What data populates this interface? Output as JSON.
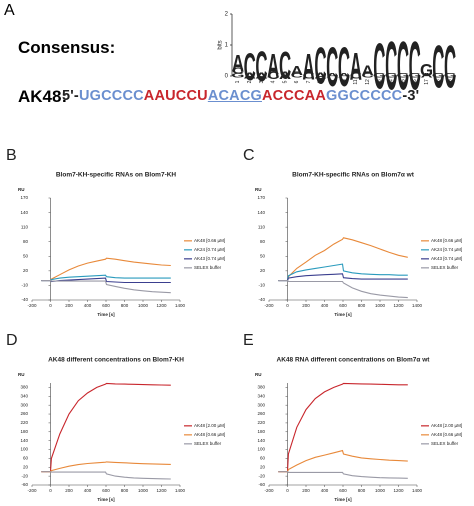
{
  "panel_a": {
    "panel": "A",
    "consensus_label": "Consensus:",
    "seq_label": "AK48:",
    "sequence": [
      {
        "text": "5'-",
        "color": "#222222"
      },
      {
        "text": "UGCCCC",
        "color": "#6b8fcf"
      },
      {
        "text": "AAUCCU",
        "color": "#c8262c"
      },
      {
        "text": "ACACG",
        "color": "#6b8fcf",
        "underline": true
      },
      {
        "text": "ACCCAA",
        "color": "#c8262c"
      },
      {
        "text": "GGCCCCC",
        "color": "#6b8fcf"
      },
      {
        "text": "-3'",
        "color": "#222222"
      }
    ],
    "logo": {
      "ylabel": "bits",
      "ylim": [
        0,
        2
      ],
      "yticks": [
        0,
        1,
        2
      ],
      "positions": [
        1,
        2,
        3,
        4,
        5,
        6,
        7,
        8,
        9,
        10,
        11,
        12,
        13,
        14,
        15,
        16,
        17,
        18,
        19
      ],
      "letter_colors": {
        "A": "#c8262c",
        "C": "#2f55b5",
        "G": "#e8a317",
        "U": "#2e9e3e"
      },
      "columns": [
        [
          [
            "G",
            0.15
          ],
          [
            "C",
            0.2
          ],
          [
            "A",
            0.55
          ]
        ],
        [
          [
            "A",
            0.2
          ],
          [
            "C",
            0.9
          ]
        ],
        [
          [
            "A",
            0.2
          ],
          [
            "C",
            1.0
          ]
        ],
        [
          [
            "C",
            0.25
          ],
          [
            "A",
            0.8
          ]
        ],
        [
          [
            "A",
            0.25
          ],
          [
            "C",
            0.9
          ]
        ],
        [
          [
            "C",
            0.15
          ],
          [
            "A",
            0.3
          ]
        ],
        [
          [
            "C",
            0.2
          ],
          [
            "A",
            0.85
          ]
        ],
        [
          [
            "A",
            0.2
          ],
          [
            "C",
            1.2
          ]
        ],
        [
          [
            "A",
            0.15
          ],
          [
            "C",
            1.3
          ]
        ],
        [
          [
            "A",
            0.15
          ],
          [
            "C",
            1.3
          ]
        ],
        [
          [
            "C",
            0.2
          ],
          [
            "A",
            0.9
          ]
        ],
        [
          [
            "C",
            0.15
          ],
          [
            "A",
            0.35
          ]
        ],
        [
          [
            "G",
            0.15
          ],
          [
            "C",
            1.5
          ]
        ],
        [
          [
            "G",
            0.15
          ],
          [
            "C",
            1.6
          ]
        ],
        [
          [
            "G",
            0.15
          ],
          [
            "C",
            1.6
          ]
        ],
        [
          [
            "G",
            0.15
          ],
          [
            "C",
            1.6
          ]
        ],
        [
          [
            "A",
            0.15
          ],
          [
            "G",
            0.4
          ]
        ],
        [
          [
            "G",
            0.15
          ],
          [
            "C",
            1.4
          ]
        ],
        [
          [
            "G",
            0.15
          ],
          [
            "C",
            1.4
          ]
        ]
      ]
    }
  },
  "chart_data": [
    {
      "type": "line",
      "panel": "B",
      "title": "Blom7-KH-specific RNAs on Blom7-KH",
      "xlabel": "Time [s]",
      "ylabel": "RU",
      "legend": "right",
      "xlim": [
        -200,
        1400
      ],
      "xticks": [
        -200,
        0,
        200,
        400,
        600,
        800,
        1000,
        1200,
        1400
      ],
      "ylim": [
        -40,
        170
      ],
      "yticks": [
        -40,
        -10,
        20,
        50,
        80,
        110,
        140,
        170
      ],
      "x": [
        -100,
        0,
        10,
        100,
        200,
        300,
        400,
        500,
        595,
        605,
        700,
        800,
        900,
        1000,
        1100,
        1200,
        1300
      ],
      "series": [
        {
          "name": "AK48 [0.66 µM]",
          "color": "#e8893a",
          "values": [
            0,
            0,
            3,
            12,
            22,
            30,
            36,
            40,
            44,
            46,
            44,
            41,
            38,
            36,
            34,
            32,
            31
          ]
        },
        {
          "name": "AK24 [0.74 µM]",
          "color": "#2a9bbd",
          "values": [
            0,
            0,
            2,
            5,
            7,
            8,
            9,
            10,
            11,
            8,
            6,
            5,
            5,
            5,
            5,
            5,
            5
          ]
        },
        {
          "name": "AK43 [0.74 µM]",
          "color": "#3b3f8f",
          "values": [
            0,
            0,
            -2,
            0,
            1,
            2,
            3,
            4,
            5,
            -2,
            -3,
            -4,
            -4,
            -4,
            -4,
            -4,
            -4
          ]
        },
        {
          "name": "SELEX buffer",
          "color": "#9a9aa6",
          "values": [
            0,
            0,
            -1,
            -1,
            -1,
            -1,
            -1,
            -1,
            -1,
            -8,
            -12,
            -16,
            -19,
            -21,
            -23,
            -24,
            -25
          ]
        }
      ]
    },
    {
      "type": "line",
      "panel": "C",
      "title": "Blom7-KH-specific RNAs on Blom7α wt",
      "xlabel": "Time [s]",
      "ylabel": "RU",
      "legend": "right",
      "xlim": [
        -200,
        1400
      ],
      "xticks": [
        -200,
        0,
        200,
        400,
        600,
        800,
        1000,
        1200,
        1400
      ],
      "ylim": [
        -40,
        170
      ],
      "yticks": [
        -40,
        -10,
        20,
        50,
        80,
        110,
        140,
        170
      ],
      "x": [
        -100,
        0,
        10,
        100,
        200,
        300,
        400,
        500,
        595,
        605,
        700,
        800,
        900,
        1000,
        1100,
        1200,
        1300
      ],
      "series": [
        {
          "name": "AK48 [0.66 µM]",
          "color": "#e8893a",
          "values": [
            0,
            0,
            8,
            25,
            38,
            52,
            62,
            75,
            85,
            88,
            84,
            78,
            72,
            65,
            58,
            52,
            48
          ]
        },
        {
          "name": "AK24 [0.74 µM]",
          "color": "#2a9bbd",
          "values": [
            0,
            0,
            10,
            18,
            22,
            25,
            28,
            31,
            34,
            20,
            16,
            14,
            13,
            12,
            12,
            11,
            11
          ]
        },
        {
          "name": "AK43 [0.74 µM]",
          "color": "#3b3f8f",
          "values": [
            0,
            0,
            5,
            8,
            10,
            11,
            12,
            13,
            14,
            6,
            4,
            3,
            3,
            3,
            3,
            3,
            3
          ]
        },
        {
          "name": "SELEX buffer",
          "color": "#9a9aa6",
          "values": [
            0,
            0,
            -2,
            -2,
            -2,
            -2,
            -2,
            -2,
            -2,
            -5,
            -15,
            -22,
            -27,
            -30,
            -32,
            -34,
            -35
          ]
        }
      ]
    },
    {
      "type": "line",
      "panel": "D",
      "title": "AK48 different concentrations on Blom7-KH",
      "xlabel": "Time [s]",
      "ylabel": "RU",
      "legend": "right",
      "xlim": [
        -200,
        1400
      ],
      "xticks": [
        -200,
        0,
        200,
        400,
        600,
        800,
        1000,
        1200,
        1400
      ],
      "ylim": [
        -60,
        400
      ],
      "yticks": [
        -60,
        -20,
        20,
        60,
        100,
        140,
        180,
        220,
        260,
        300,
        340,
        380
      ],
      "x": [
        -100,
        0,
        10,
        100,
        200,
        300,
        400,
        500,
        595,
        605,
        700,
        800,
        900,
        1000,
        1100,
        1200,
        1300
      ],
      "series": [
        {
          "name": "AK48 [2.00 µM]",
          "color": "#c8262c",
          "values": [
            0,
            0,
            60,
            170,
            260,
            320,
            355,
            380,
            395,
            398,
            396,
            395,
            394,
            393,
            392,
            391,
            390
          ]
        },
        {
          "name": "AK48 [0.66 µM]",
          "color": "#e8893a",
          "values": [
            0,
            0,
            5,
            15,
            25,
            32,
            37,
            40,
            43,
            44,
            42,
            40,
            38,
            36,
            35,
            34,
            33
          ]
        },
        {
          "name": "SELEX buffer",
          "color": "#9a9aa6",
          "values": [
            0,
            0,
            -2,
            -2,
            -2,
            -2,
            -2,
            -2,
            -2,
            -10,
            -20,
            -25,
            -28,
            -30,
            -31,
            -32,
            -33
          ]
        }
      ]
    },
    {
      "type": "line",
      "panel": "E",
      "title": "AK48 RNA different concentrations on Blom7α wt",
      "xlabel": "Time [s]",
      "ylabel": "RU",
      "legend": "right",
      "xlim": [
        -200,
        1400
      ],
      "xticks": [
        -200,
        0,
        200,
        400,
        600,
        800,
        1000,
        1200,
        1400
      ],
      "ylim": [
        -60,
        400
      ],
      "yticks": [
        -60,
        -20,
        20,
        60,
        100,
        140,
        180,
        220,
        260,
        300,
        340,
        380
      ],
      "x": [
        -100,
        0,
        10,
        100,
        200,
        300,
        400,
        500,
        595,
        605,
        700,
        800,
        900,
        1000,
        1100,
        1200,
        1300
      ],
      "series": [
        {
          "name": "AK48 [2.00 µM]",
          "color": "#c8262c",
          "values": [
            0,
            0,
            80,
            200,
            280,
            330,
            360,
            380,
            395,
            398,
            397,
            396,
            395,
            394,
            393,
            392,
            392
          ]
        },
        {
          "name": "AK48 [0.66 µM]",
          "color": "#e8893a",
          "values": [
            0,
            0,
            10,
            30,
            50,
            65,
            75,
            85,
            95,
            80,
            70,
            62,
            58,
            55,
            52,
            50,
            48
          ]
        },
        {
          "name": "SELEX buffer",
          "color": "#9a9aa6",
          "values": [
            0,
            0,
            -3,
            -3,
            -3,
            -3,
            -3,
            -3,
            -3,
            -10,
            -18,
            -22,
            -25,
            -27,
            -28,
            -29,
            -30
          ]
        }
      ]
    }
  ]
}
